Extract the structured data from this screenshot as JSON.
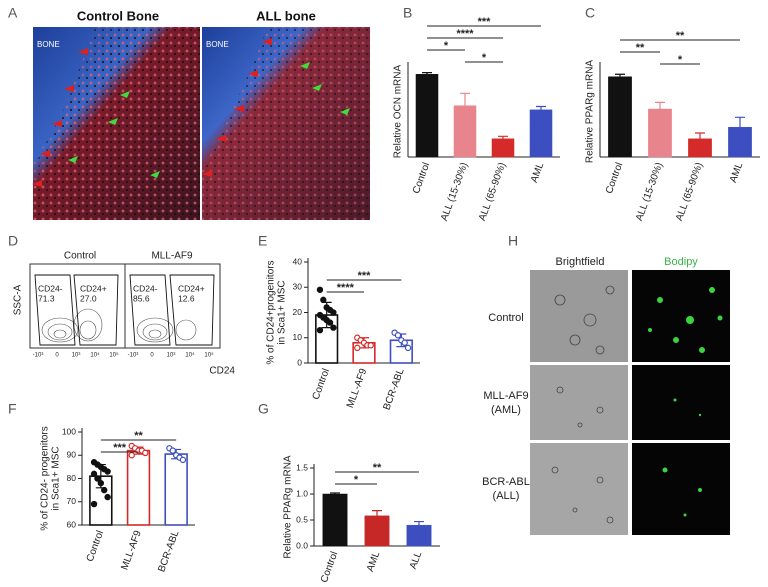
{
  "figure": {
    "panel_labels": [
      "A",
      "B",
      "C",
      "D",
      "E",
      "F",
      "G",
      "H"
    ]
  },
  "panel_a": {
    "titles": [
      "Control Bone",
      "ALL bone"
    ],
    "bone_label": "BONE"
  },
  "panel_d": {
    "plots": [
      {
        "title": "Control",
        "gates": [
          {
            "name": "CD24-",
            "value": "71.3"
          },
          {
            "name": "CD24+",
            "value": "27.0"
          }
        ]
      },
      {
        "title": "MLL-AF9",
        "gates": [
          {
            "name": "CD24-",
            "value": "85.6"
          },
          {
            "name": "CD24+",
            "value": "12.6"
          }
        ]
      }
    ],
    "y_label": "SSC-A",
    "x_label": "CD24",
    "x_ticks": [
      "-10³",
      "0",
      "10³",
      "10⁴",
      "10⁵"
    ]
  },
  "panel_h": {
    "columns": [
      "Brightfield",
      "Bodipy"
    ],
    "rows": [
      [
        "Control"
      ],
      [
        "MLL-AF9",
        "(AML)"
      ],
      [
        "BCR-ABL",
        "(ALL)"
      ]
    ]
  },
  "chart_data": [
    {
      "type": "bar",
      "y_label": [
        "Relative OCN mRNA"
      ],
      "categories": [
        "Control",
        "ALL (15-30%)",
        "ALL (65-90%)",
        "AML"
      ],
      "values": [
        1.0,
        0.62,
        0.22,
        0.57
      ],
      "errors": [
        0.02,
        0.15,
        0.03,
        0.04
      ],
      "colors": [
        "#111111",
        "#e8848c",
        "#d42a2a",
        "#3d4fc0"
      ],
      "bar_style": "filled",
      "ylim": [
        0,
        1.1
      ],
      "significance": [
        {
          "between": [
            "Control",
            "AML"
          ],
          "label": "***"
        },
        {
          "between": [
            "Control",
            "ALL (65-90%)"
          ],
          "label": "****"
        },
        {
          "between": [
            "Control",
            "ALL (15-30%)"
          ],
          "label": "*"
        },
        {
          "between": [
            "ALL (15-30%)",
            "ALL (65-90%)"
          ],
          "label": "*"
        }
      ]
    },
    {
      "type": "bar",
      "y_label": [
        "Relative PPARg mRNA"
      ],
      "categories": [
        "Control",
        "ALL (15-30%)",
        "ALL (65-90%)",
        "AML"
      ],
      "values": [
        0.97,
        0.58,
        0.22,
        0.36
      ],
      "errors": [
        0.03,
        0.08,
        0.07,
        0.12
      ],
      "colors": [
        "#111111",
        "#e8848c",
        "#d42a2a",
        "#3d4fc0"
      ],
      "bar_style": "filled",
      "ylim": [
        0,
        1.1
      ],
      "significance": [
        {
          "between": [
            "Control",
            "AML"
          ],
          "label": "**"
        },
        {
          "between": [
            "Control",
            "ALL (15-30%)"
          ],
          "label": "**"
        },
        {
          "between": [
            "ALL (15-30%)",
            "ALL (65-90%)"
          ],
          "label": "*"
        }
      ]
    },
    {
      "type": "bar",
      "y_label": [
        "% of CD24+progenitors",
        "in Sca1+ MSC"
      ],
      "categories": [
        "Control",
        "MLL-AF9",
        "BCR-ABL"
      ],
      "values": [
        19,
        8,
        9
      ],
      "errors": [
        5,
        2,
        2.5
      ],
      "points": [
        [
          29,
          25,
          22,
          21,
          20,
          19,
          18,
          17,
          16,
          14,
          13
        ],
        [
          10,
          9,
          8,
          7,
          7,
          6
        ],
        [
          12,
          11,
          9,
          8,
          6
        ]
      ],
      "colors": [
        "#111111",
        "#d42a2a",
        "#3d4fc0"
      ],
      "bar_style": "open",
      "ylim": [
        0,
        40
      ],
      "yticks": [
        0,
        10,
        20,
        30,
        40
      ],
      "significance": [
        {
          "between": [
            "Control",
            "BCR-ABL"
          ],
          "label": "***"
        },
        {
          "between": [
            "Control",
            "MLL-AF9"
          ],
          "label": "****"
        }
      ]
    },
    {
      "type": "bar",
      "y_label": [
        "% of CD24- progenitors",
        "in Sca1+ MSC"
      ],
      "categories": [
        "Control",
        "MLL-AF9",
        "BCR-ABL"
      ],
      "values": [
        81,
        92,
        90.5
      ],
      "errors": [
        5,
        1.5,
        2
      ],
      "points": [
        [
          87,
          86,
          85,
          84,
          83,
          82,
          80,
          78,
          75,
          72,
          69
        ],
        [
          94,
          93,
          92,
          92,
          91,
          90
        ],
        [
          93,
          92,
          90,
          89,
          88
        ]
      ],
      "colors": [
        "#111111",
        "#d42a2a",
        "#3d4fc0"
      ],
      "bar_style": "open",
      "ylim": [
        60,
        100
      ],
      "yticks": [
        60,
        70,
        80,
        90,
        100
      ],
      "significance": [
        {
          "between": [
            "Control",
            "BCR-ABL"
          ],
          "label": "**"
        },
        {
          "between": [
            "Control",
            "MLL-AF9"
          ],
          "label": "***"
        }
      ]
    },
    {
      "type": "bar",
      "y_label": [
        "Relative PPARg mRNA"
      ],
      "categories": [
        "Control",
        "AML",
        "ALL"
      ],
      "values": [
        1.0,
        0.58,
        0.4
      ],
      "errors": [
        0.02,
        0.1,
        0.07
      ],
      "colors": [
        "#111111",
        "#c62828",
        "#3d4fc0"
      ],
      "bar_style": "filled",
      "ylim": [
        0,
        1.5
      ],
      "yticks": [
        {
          "value": 0,
          "label": "0.0"
        },
        0.5,
        {
          "value": 1,
          "label": "1.0"
        },
        1.5
      ],
      "significance": [
        {
          "between": [
            "Control",
            "ALL"
          ],
          "label": "**"
        },
        {
          "between": [
            "Control",
            "AML"
          ],
          "label": "*"
        }
      ]
    }
  ]
}
